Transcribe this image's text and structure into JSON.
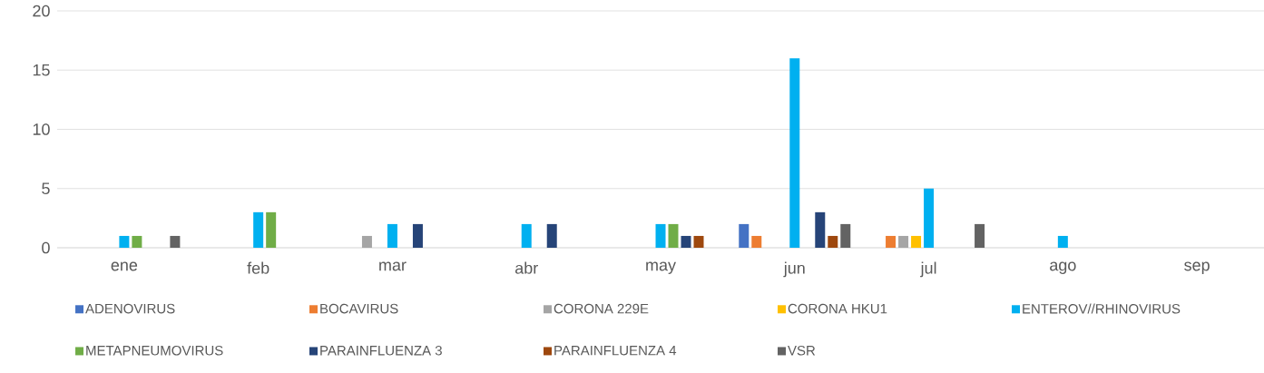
{
  "chart_data": {
    "type": "bar",
    "categories": [
      "ene",
      "feb",
      "mar",
      "abr",
      "may",
      "jun",
      "jul",
      "ago",
      "sep"
    ],
    "ylim": [
      0,
      20
    ],
    "yticks": [
      0,
      5,
      10,
      15,
      20
    ],
    "grid": "y",
    "legend": "bottom",
    "series": [
      {
        "name": "ADENOVIRUS",
        "color": "#4472c4",
        "values": [
          null,
          null,
          null,
          null,
          null,
          2,
          null,
          null,
          null
        ]
      },
      {
        "name": "BOCAVIRUS",
        "color": "#ed7d31",
        "values": [
          null,
          null,
          null,
          null,
          null,
          1,
          1,
          null,
          null
        ]
      },
      {
        "name": "CORONA 229E",
        "color": "#a5a5a5",
        "values": [
          null,
          null,
          1,
          null,
          null,
          null,
          1,
          null,
          null
        ]
      },
      {
        "name": "CORONA HKU1",
        "color": "#ffc000",
        "values": [
          null,
          null,
          null,
          null,
          null,
          null,
          1,
          null,
          null
        ]
      },
      {
        "name": "ENTEROV//RHINOVIRUS",
        "color": "#00b0f0",
        "values": [
          1,
          3,
          2,
          2,
          2,
          16,
          5,
          1,
          null
        ]
      },
      {
        "name": "METAPNEUMOVIRUS",
        "color": "#70ad47",
        "values": [
          1,
          3,
          null,
          null,
          2,
          null,
          null,
          null,
          null
        ]
      },
      {
        "name": "PARAINFLUENZA 3",
        "color": "#264478",
        "values": [
          null,
          null,
          2,
          2,
          1,
          3,
          null,
          null,
          null
        ]
      },
      {
        "name": "PARAINFLUENZA 4",
        "color": "#9e480e",
        "values": [
          null,
          null,
          null,
          null,
          1,
          1,
          null,
          null,
          null
        ]
      },
      {
        "name": "VSR",
        "color": "#636363",
        "values": [
          1,
          null,
          null,
          null,
          null,
          2,
          2,
          null,
          null
        ]
      }
    ]
  }
}
